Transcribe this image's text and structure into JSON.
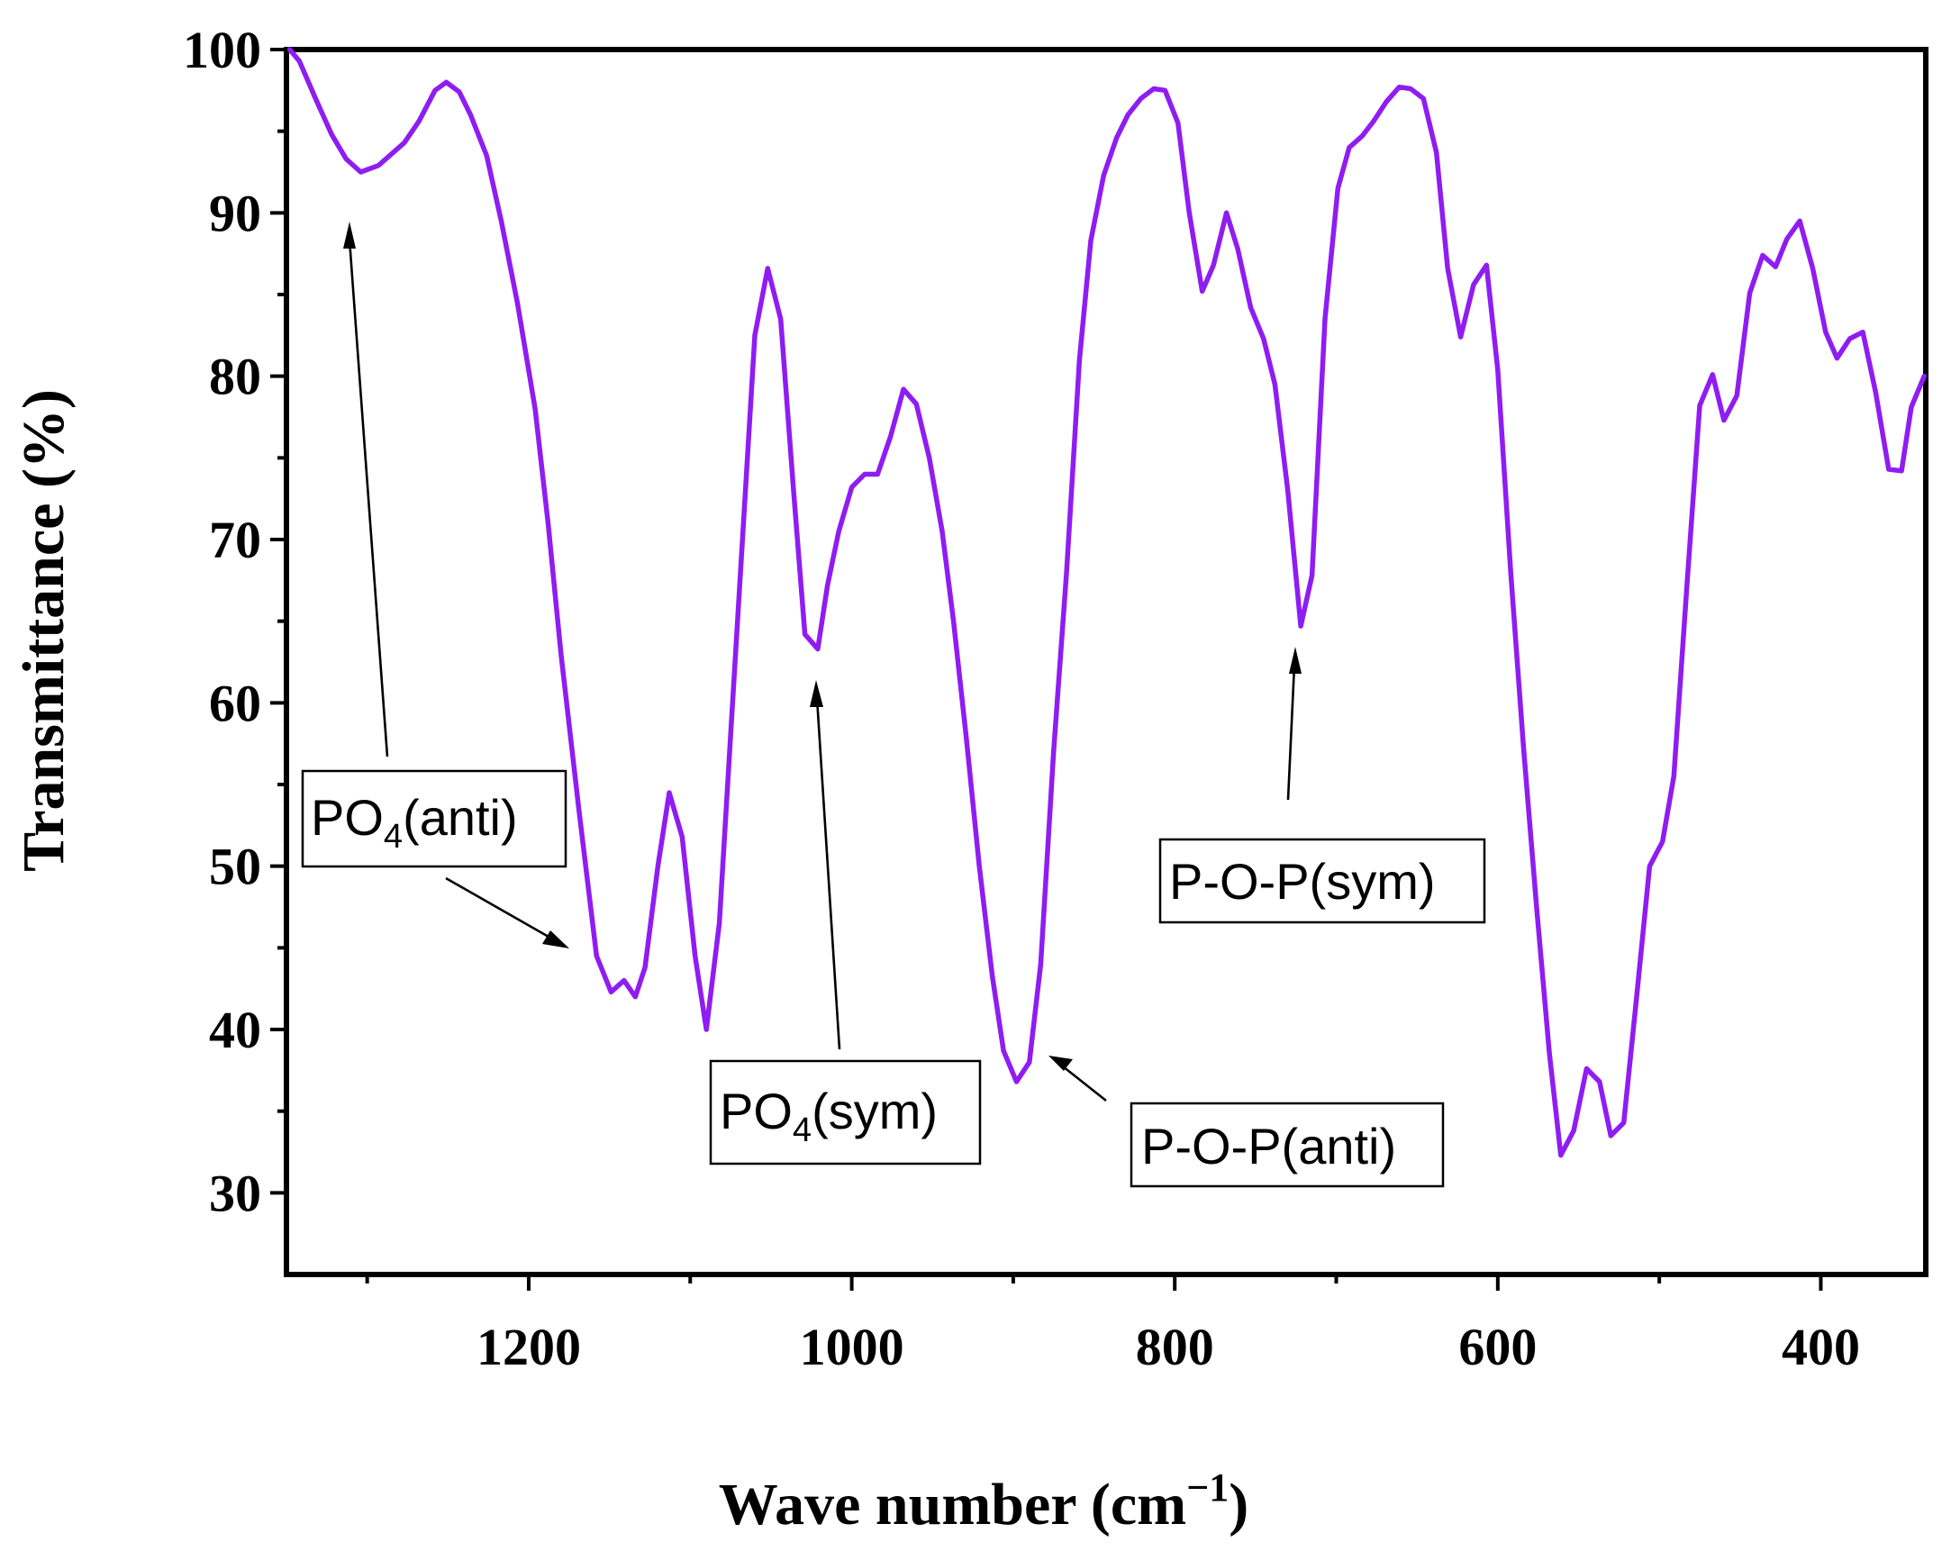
{
  "chart_data": {
    "type": "line",
    "title": "",
    "xlabel": "Wave number (cm",
    "xlabel_sup": "−1",
    "xlabel_close": ")",
    "ylabel": "Transmittance (%)",
    "xlim": [
      1350,
      335
    ],
    "ylim": [
      25,
      100
    ],
    "x_inverted": true,
    "xticks": [
      1200,
      1000,
      800,
      600,
      400
    ],
    "yticks": [
      30,
      40,
      50,
      60,
      70,
      80,
      90,
      100
    ],
    "grid": false,
    "line_color": "#8F1DF2",
    "series": [
      {
        "name": "spectrum",
        "x": [
          1348,
          1342,
          1332,
          1322,
          1313,
          1304,
          1293,
          1277,
          1268,
          1258,
          1251,
          1243,
          1236,
          1226,
          1217,
          1207,
          1196,
          1188,
          1180,
          1169,
          1158,
          1149,
          1141,
          1134,
          1128,
          1120,
          1113,
          1105,
          1097,
          1090,
          1082,
          1075,
          1067,
          1060,
          1052,
          1044,
          1036,
          1029,
          1021,
          1015,
          1008,
          1000,
          992,
          984,
          976,
          968,
          960,
          952,
          944,
          937,
          929,
          921,
          913,
          906,
          898,
          890,
          883,
          875,
          867,
          859,
          852,
          844,
          836,
          829,
          821,
          813,
          806,
          798,
          791,
          783,
          776,
          768,
          761,
          753,
          745,
          738,
          730,
          722,
          715,
          707,
          699,
          692,
          684,
          677,
          669,
          661,
          654,
          646,
          638,
          631,
          623,
          615,
          607,
          600,
          592,
          584,
          576,
          568,
          561,
          553,
          545,
          537,
          530,
          522,
          514,
          506,
          498,
          491,
          483,
          475,
          467,
          460,
          452,
          444,
          436,
          428,
          421,
          413,
          405,
          397,
          390,
          382,
          374,
          366,
          358,
          350,
          344,
          336
        ],
        "y": [
          100,
          99.3,
          97,
          94.8,
          93.3,
          92.5,
          92.9,
          94.3,
          95.6,
          97.5,
          98,
          97.4,
          96,
          93.5,
          89.5,
          84.5,
          78,
          71,
          63,
          53.5,
          44.5,
          42.3,
          43,
          42,
          43.8,
          50,
          54.5,
          51.8,
          44.5,
          40,
          46.5,
          58,
          71,
          82.5,
          86.6,
          83.5,
          73,
          64.2,
          63.3,
          67.2,
          70.5,
          73.2,
          74,
          74,
          76.3,
          79.2,
          78.3,
          75,
          70.5,
          65,
          57.8,
          50,
          43.3,
          38.7,
          36.8,
          38,
          44,
          57,
          68,
          81,
          88.3,
          92.3,
          94.6,
          96,
          97,
          97.6,
          97.5,
          95.5,
          90,
          85.2,
          86.8,
          90,
          87.8,
          84.2,
          82.3,
          79.5,
          73,
          64.7,
          67.8,
          83.5,
          91.5,
          94,
          94.7,
          95.6,
          96.8,
          97.7,
          97.6,
          97,
          93.7,
          86.6,
          82.4,
          85.6,
          86.8,
          80.4,
          68,
          57.2,
          47.5,
          38.5,
          32.3,
          33.8,
          37.6,
          36.8,
          33.5,
          34.3,
          42,
          50,
          51.5,
          55.5,
          67,
          78.2,
          80.1,
          77.3,
          78.8,
          85.1,
          87.4,
          86.7,
          88.4,
          89.5,
          86.6,
          82.7,
          81.1,
          82.3,
          82.7,
          79,
          74.3,
          74.2,
          78.1,
          80
        ]
      }
    ],
    "annotations": [
      {
        "label": "PO",
        "sub": "4",
        "suffix": "(anti)"
      },
      {
        "label": "PO",
        "sub": "4",
        "suffix": "(sym)"
      },
      {
        "label": "P-O-P(anti)",
        "sub": "",
        "suffix": ""
      },
      {
        "label": "P-O-P(sym)",
        "sub": "",
        "suffix": ""
      }
    ]
  }
}
